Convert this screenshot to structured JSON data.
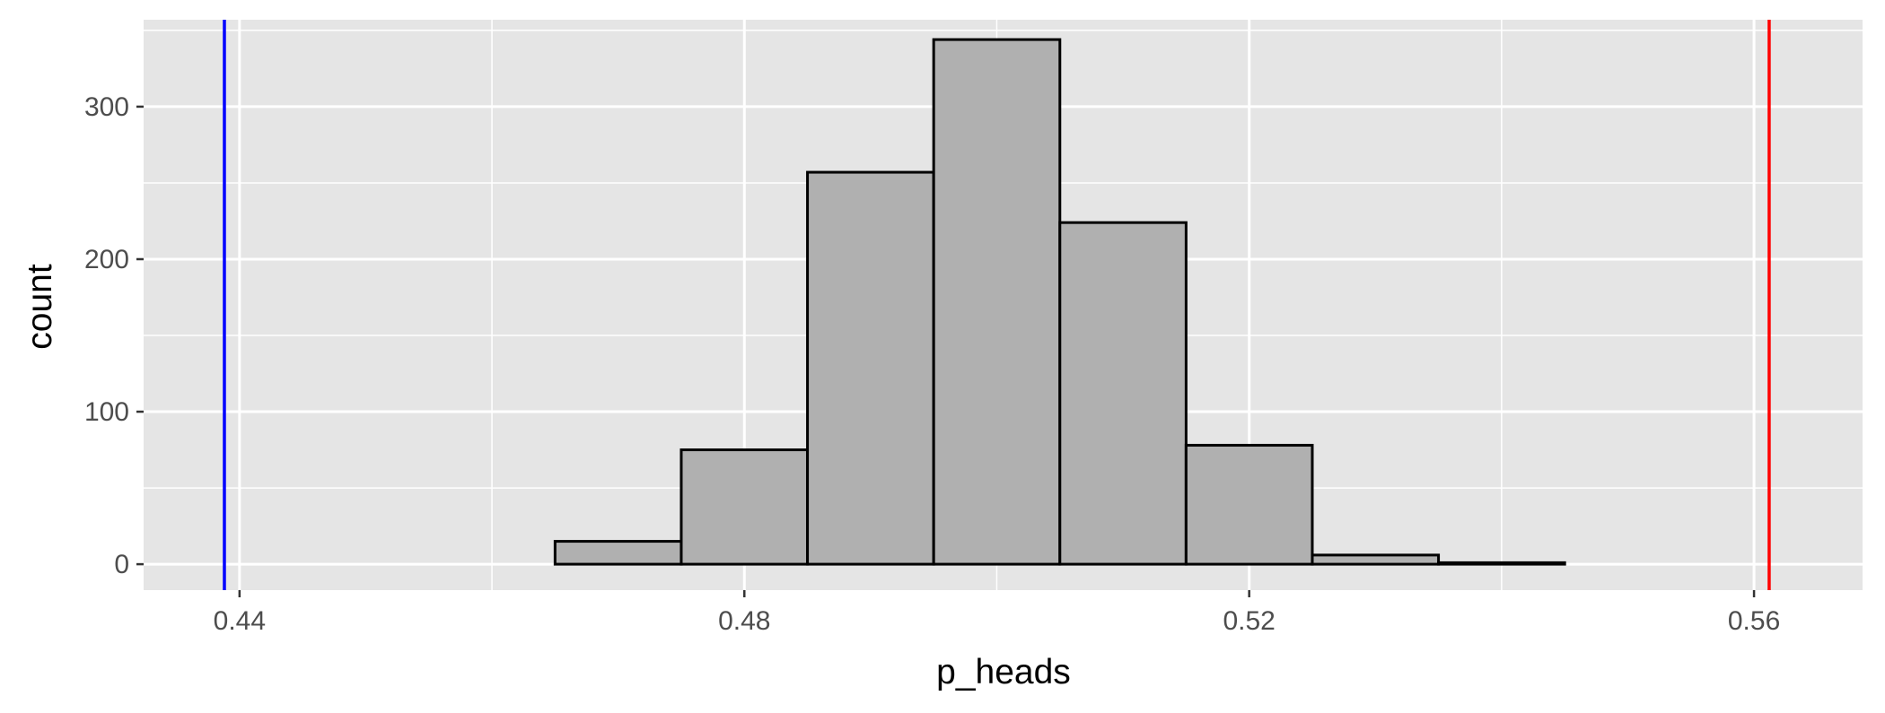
{
  "chart_data": {
    "type": "bar",
    "title": "",
    "xlabel": "p_heads",
    "ylabel": "count",
    "xlim": [
      0.4324,
      0.5686
    ],
    "ylim": [
      -17,
      357
    ],
    "x_ticks": [
      "0.44",
      "0.48",
      "0.52",
      "0.56"
    ],
    "x_tick_values": [
      0.44,
      0.48,
      0.52,
      0.56
    ],
    "x_minor_values": [
      0.46,
      0.5,
      0.54
    ],
    "y_ticks": [
      "0",
      "100",
      "200",
      "300"
    ],
    "y_tick_values": [
      0,
      100,
      200,
      300
    ],
    "y_minor_values": [
      50,
      150,
      250,
      350
    ],
    "bin_width": 0.01,
    "bins": [
      {
        "xmin": 0.435,
        "xmax": 0.445,
        "count": 0
      },
      {
        "xmin": 0.445,
        "xmax": 0.455,
        "count": 0
      },
      {
        "xmin": 0.455,
        "xmax": 0.465,
        "count": 0
      },
      {
        "xmin": 0.465,
        "xmax": 0.475,
        "count": 15
      },
      {
        "xmin": 0.475,
        "xmax": 0.485,
        "count": 75
      },
      {
        "xmin": 0.485,
        "xmax": 0.495,
        "count": 257
      },
      {
        "xmin": 0.495,
        "xmax": 0.505,
        "count": 344
      },
      {
        "xmin": 0.505,
        "xmax": 0.515,
        "count": 224
      },
      {
        "xmin": 0.515,
        "xmax": 0.525,
        "count": 78
      },
      {
        "xmin": 0.525,
        "xmax": 0.535,
        "count": 6
      },
      {
        "xmin": 0.535,
        "xmax": 0.545,
        "count": 1
      },
      {
        "xmin": 0.545,
        "xmax": 0.555,
        "count": 0
      },
      {
        "xmin": 0.555,
        "xmax": 0.565,
        "count": 0
      }
    ],
    "vlines": [
      {
        "x": 0.4388,
        "color": "#0000ff"
      },
      {
        "x": 0.5612,
        "color": "#ff0000"
      }
    ],
    "grid": true,
    "legend": "none",
    "colors": {
      "panel": "#e5e5e5",
      "grid": "#ffffff",
      "bar_fill": "#b0b0b0",
      "bar_outline": "#000000"
    }
  }
}
